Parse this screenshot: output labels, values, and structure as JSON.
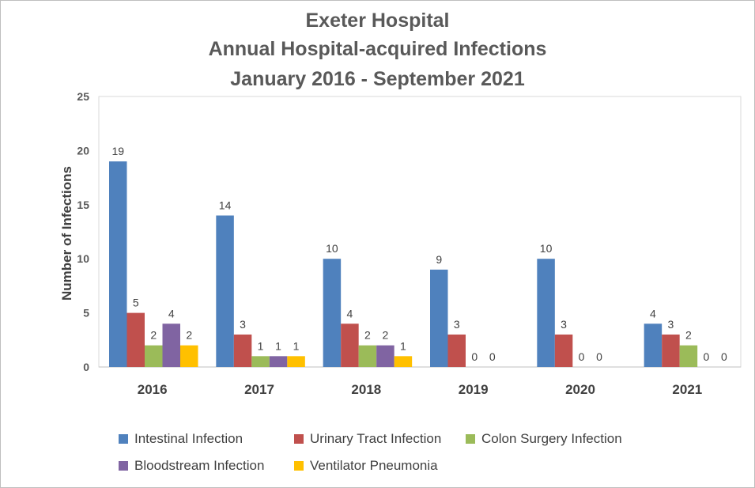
{
  "chart_data": {
    "type": "bar",
    "title_lines": [
      "Exeter Hospital",
      "Annual Hospital-acquired Infections",
      "January 2016 - September 2021"
    ],
    "xlabel": "",
    "ylabel": "Number of Infections",
    "ylim": [
      0,
      25
    ],
    "yticks": [
      "0",
      "5",
      "10",
      "15",
      "20",
      "25"
    ],
    "categories": [
      "2016",
      "2017",
      "2018",
      "2019",
      "2020",
      "2021"
    ],
    "series": [
      {
        "name": "Intestinal Infection",
        "color": "#4f81bd",
        "values": [
          19,
          14,
          10,
          9,
          10,
          4
        ],
        "labels": [
          "19",
          "14",
          "10",
          "9",
          "10",
          "4"
        ]
      },
      {
        "name": "Urinary Tract Infection",
        "color": "#c0504d",
        "values": [
          5,
          3,
          4,
          3,
          3,
          3
        ],
        "labels": [
          "5",
          "3",
          "4",
          "3",
          "3",
          "3"
        ]
      },
      {
        "name": "Colon Surgery Infection",
        "color": "#9bbb59",
        "values": [
          2,
          1,
          2,
          0,
          0,
          2
        ],
        "labels": [
          "2",
          "1",
          "2",
          "0",
          "0",
          "2"
        ]
      },
      {
        "name": "Bloodstream Infection",
        "color": "#8064a2",
        "values": [
          4,
          1,
          2,
          0,
          0,
          null
        ],
        "labels": [
          "4",
          "1",
          "2",
          "0",
          "0",
          "0"
        ]
      },
      {
        "name": "Ventilator Pneumonia",
        "color": "#ffc000",
        "values": [
          2,
          1,
          1,
          null,
          null,
          null
        ],
        "labels": [
          "2",
          "1",
          "1",
          "",
          "",
          "0"
        ]
      }
    ],
    "grid": false,
    "legend_position": "bottom"
  }
}
